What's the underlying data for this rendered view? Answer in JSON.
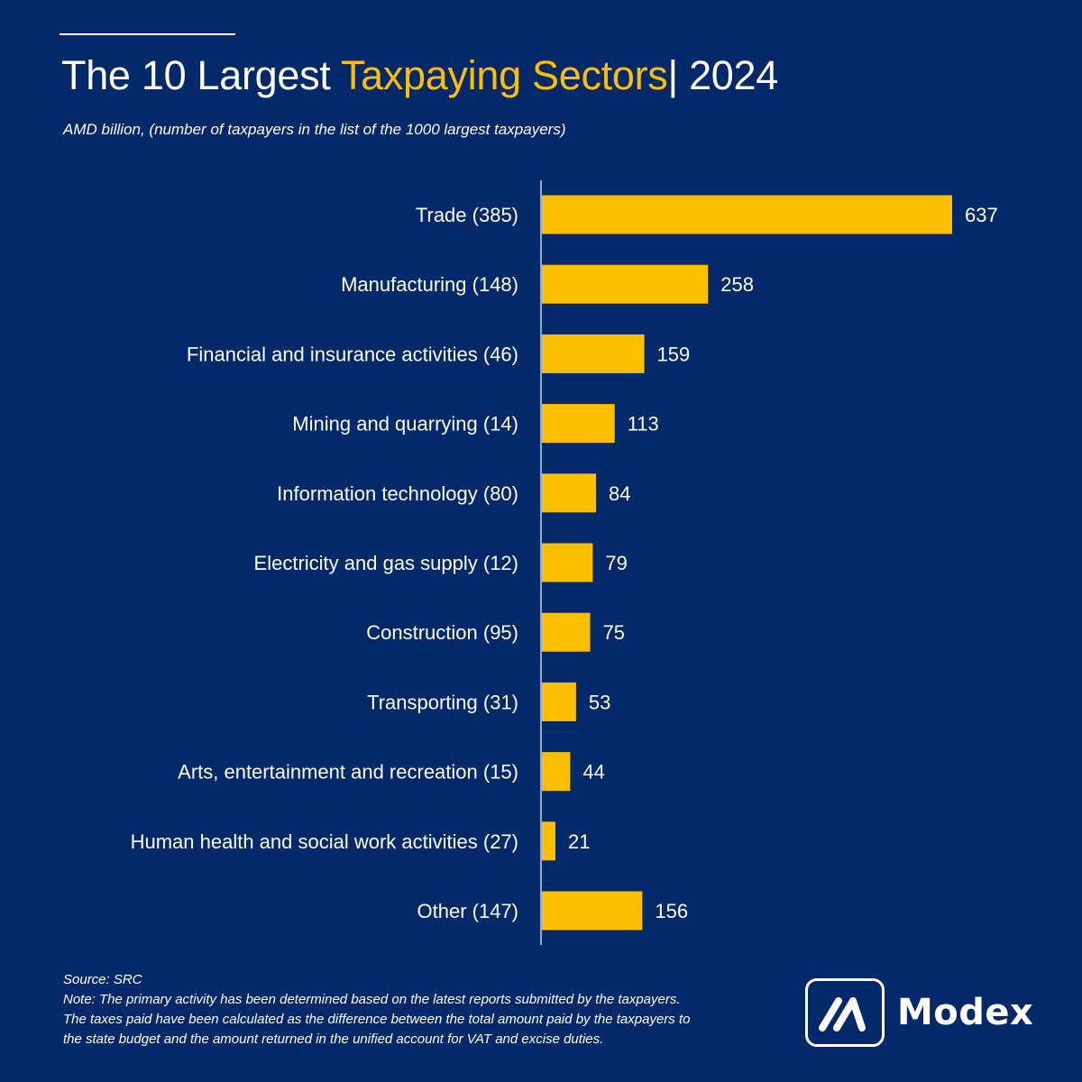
{
  "header": {
    "title_prefix": "The 10 Largest ",
    "title_accent": "Taxpaying Sectors",
    "title_suffix": "| 2024",
    "subtitle": "AMD billion, (number of taxpayers in the list of the 1000 largest taxpayers)"
  },
  "chart_data": {
    "type": "bar",
    "orientation": "horizontal",
    "title": "The 10 Largest Taxpaying Sectors| 2024",
    "subtitle": "AMD billion, (number of taxpayers in the list of the 1000 largest taxpayers)",
    "categories": [
      "Trade (385)",
      "Manufacturing (148)",
      "Financial and insurance activities (46)",
      "Mining and quarrying (14)",
      "Information technology (80)",
      "Electricity and gas supply (12)",
      "Construction (95)",
      "Transporting (31)",
      "Arts, entertainment and recreation (15)",
      "Human health and social work activities (27)",
      "Other (147)"
    ],
    "values": [
      637,
      258,
      159,
      113,
      84,
      79,
      75,
      53,
      44,
      21,
      156
    ],
    "value_labels": [
      "637",
      "258",
      "159",
      "113",
      "84",
      "79",
      "75",
      "53",
      "44",
      "21",
      "156"
    ],
    "xlim": [
      0,
      637
    ],
    "grid": false,
    "legend": "none",
    "bar_color": "#fcbf00"
  },
  "colors": {
    "background": "#03296a",
    "accent": "#fcbf00",
    "text": "#ffffff"
  },
  "footer": {
    "source": "Source: SRC",
    "note_lines": [
      "Note: The primary activity has been determined based on the latest reports submitted by the taxpayers.",
      "The taxes paid have been calculated as the difference between the total amount paid by the taxpayers to",
      "the state budget and the amount returned in the unified account for VAT and excise duties."
    ]
  },
  "logo": {
    "text": "Modex",
    "icon": "modex-logo-icon"
  }
}
